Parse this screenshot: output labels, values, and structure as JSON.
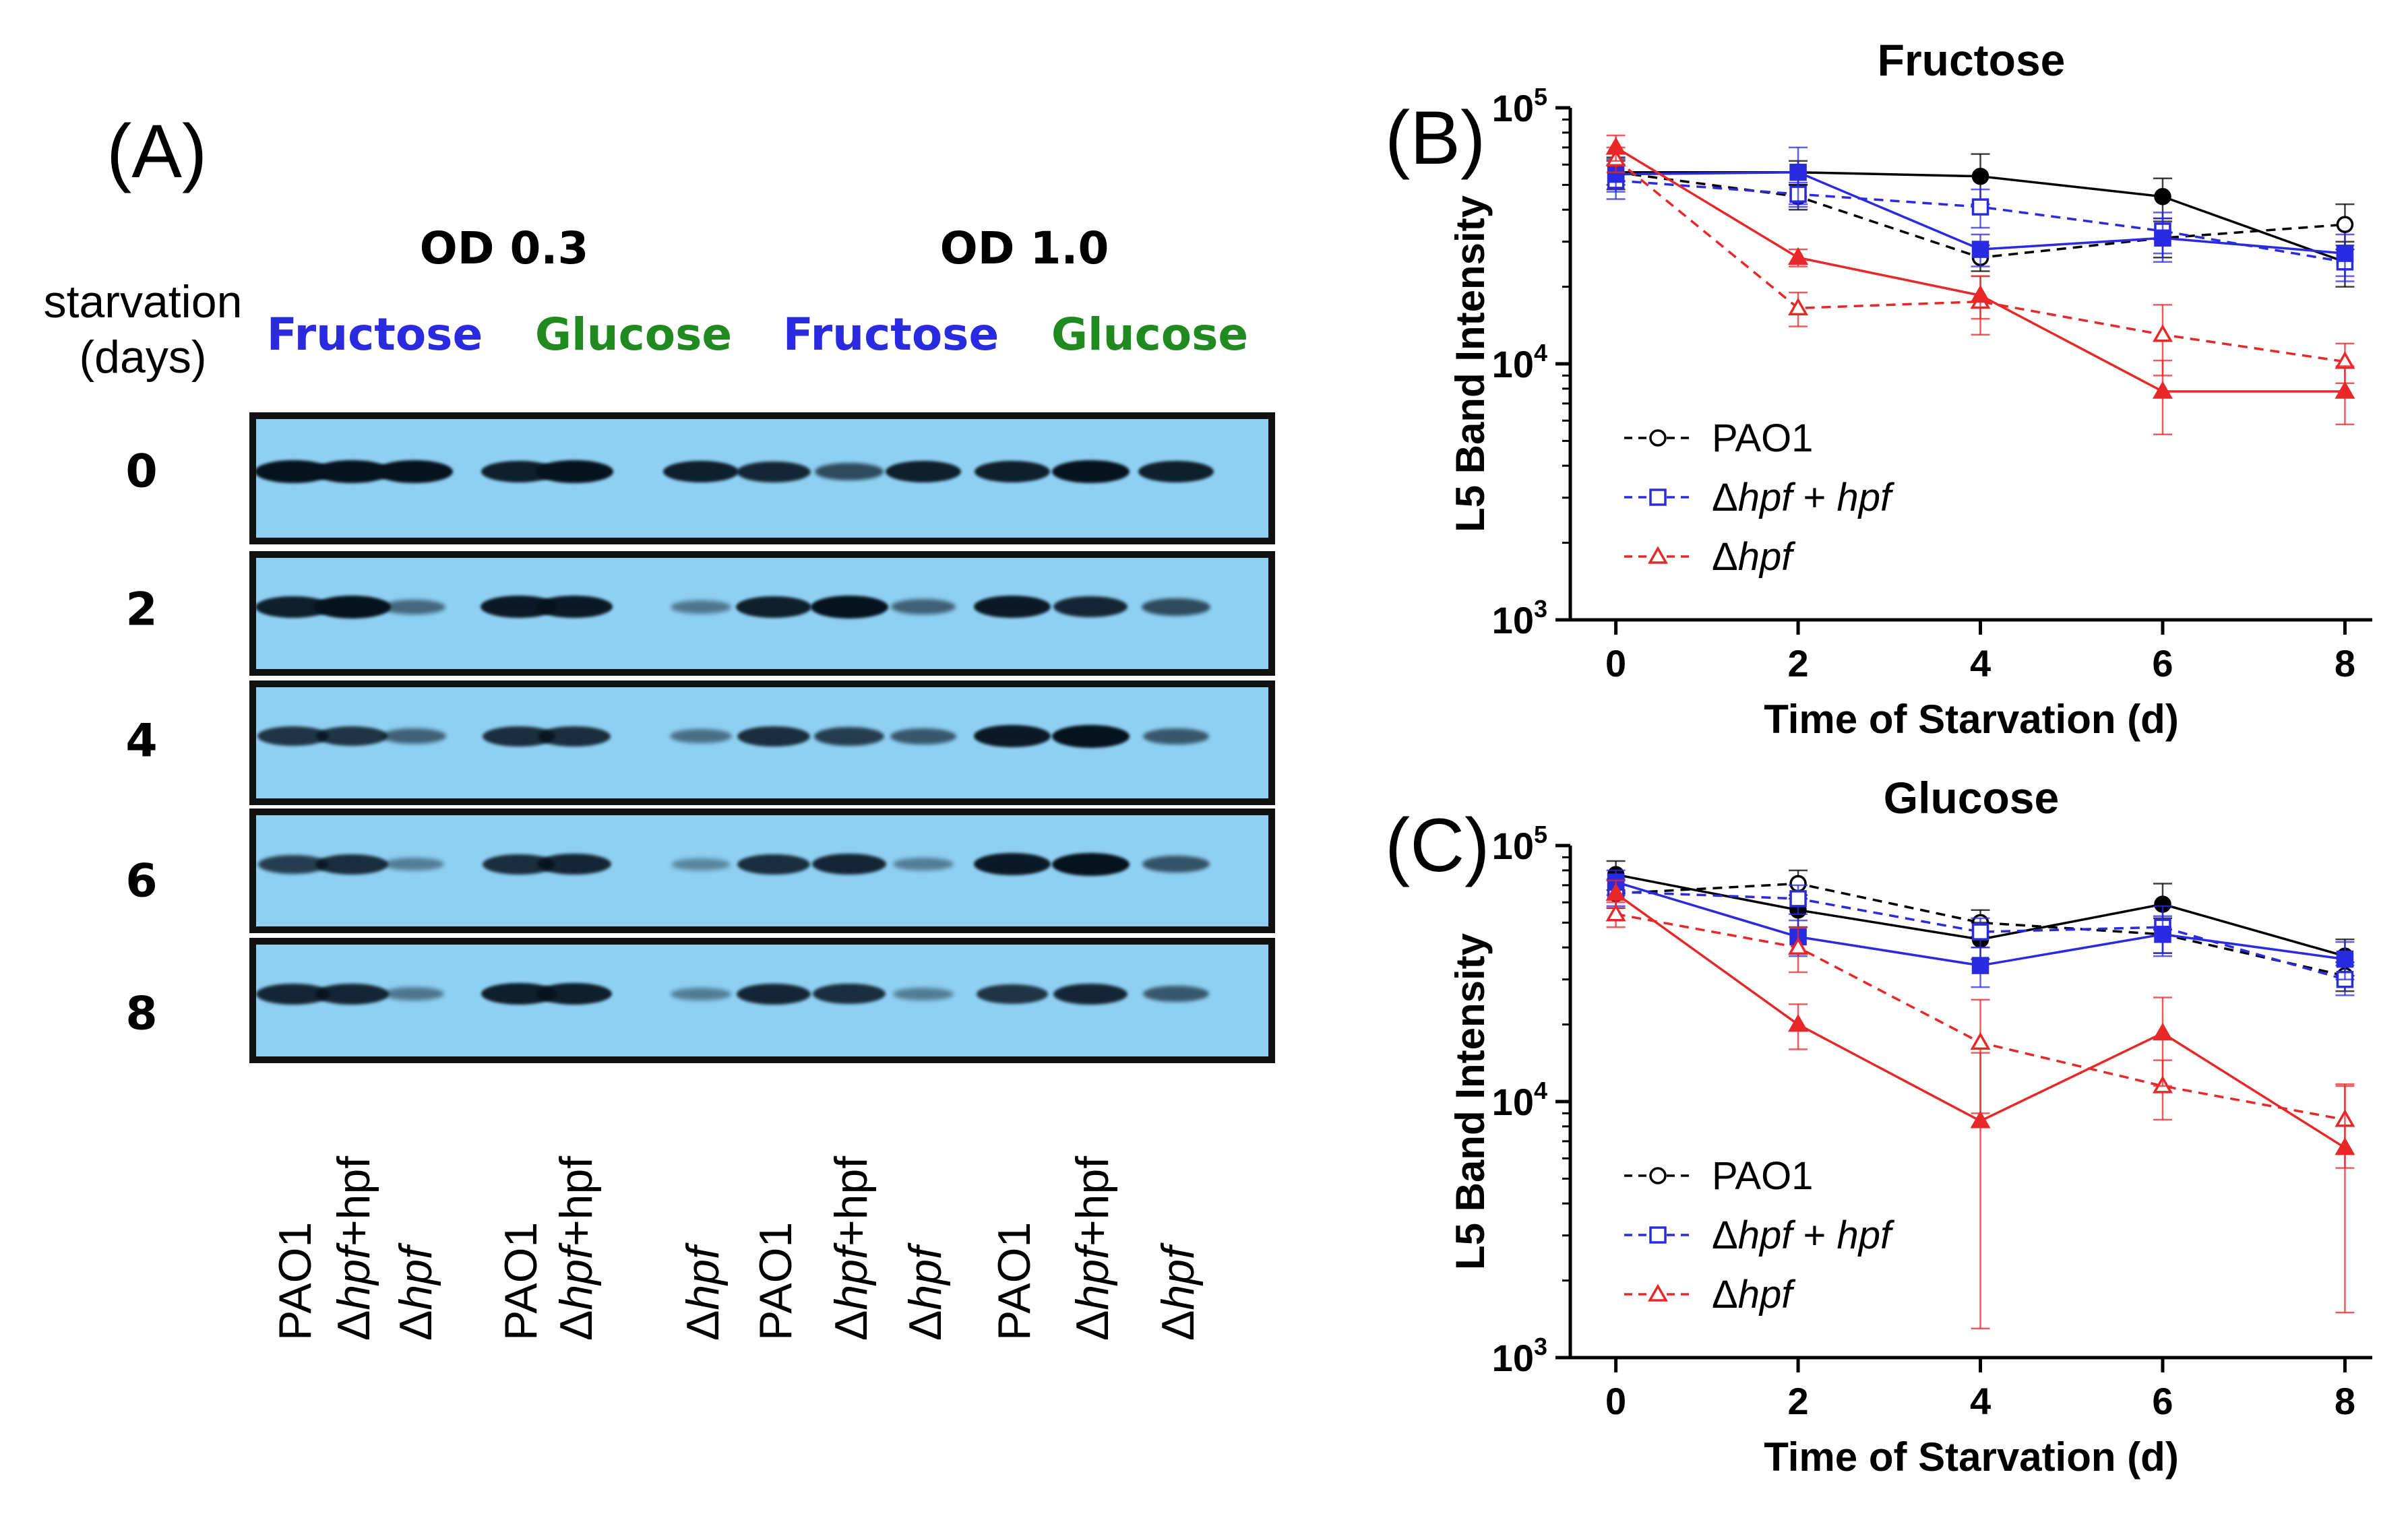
{
  "panels": {
    "a_label": "(A)",
    "b_label": "(B)",
    "c_label": "(C)"
  },
  "blot": {
    "side_label_line1": "starvation",
    "side_label_line2": "(days)",
    "od_groups": [
      "OD 0.3",
      "OD 1.0"
    ],
    "carbon_sources": [
      {
        "label": "Fructose",
        "color": "#2a2ae0"
      },
      {
        "label": "Glucose",
        "color": "#208a20"
      },
      {
        "label": "Fructose",
        "color": "#2a2ae0"
      },
      {
        "label": "Glucose",
        "color": "#208a20"
      }
    ],
    "rows": [
      "0",
      "2",
      "4",
      "6",
      "8"
    ],
    "lanes": [
      {
        "pre": "",
        "it": "",
        "post": "PAO1"
      },
      {
        "pre": "Δ",
        "it": "hpf",
        "post": "+hpf"
      },
      {
        "pre": "Δ",
        "it": "hpf",
        "post": ""
      },
      {
        "pre": "",
        "it": "",
        "post": "PAO1"
      },
      {
        "pre": "Δ",
        "it": "hpf",
        "post": "+hpf"
      },
      {
        "pre": "Δ",
        "it": "hpf",
        "post": ""
      },
      {
        "pre": "",
        "it": "",
        "post": "PAO1"
      },
      {
        "pre": "Δ",
        "it": "hpf",
        "post": "+hpf"
      },
      {
        "pre": "Δ",
        "it": "hpf",
        "post": ""
      },
      {
        "pre": "",
        "it": "",
        "post": "PAO1"
      },
      {
        "pre": "Δ",
        "it": "hpf",
        "post": "+hpf"
      },
      {
        "pre": "Δ",
        "it": "hpf",
        "post": ""
      }
    ],
    "band_intensity": [
      [
        1.0,
        1.0,
        1.0,
        0.9,
        1.0,
        0.9,
        0.85,
        0.6,
        0.9,
        0.9,
        1.0,
        0.9
      ],
      [
        0.9,
        1.0,
        0.4,
        0.95,
        0.95,
        0.3,
        0.9,
        1.0,
        0.45,
        0.95,
        0.85,
        0.6
      ],
      [
        0.75,
        0.75,
        0.45,
        0.8,
        0.8,
        0.35,
        0.8,
        0.7,
        0.5,
        0.95,
        1.0,
        0.5
      ],
      [
        0.7,
        0.8,
        0.25,
        0.8,
        0.85,
        0.2,
        0.8,
        0.85,
        0.25,
        0.95,
        1.0,
        0.55
      ],
      [
        0.85,
        0.85,
        0.3,
        0.9,
        0.9,
        0.25,
        0.85,
        0.8,
        0.25,
        0.75,
        0.85,
        0.5
      ]
    ]
  },
  "chart_data": [
    {
      "type": "line",
      "panel": "(B)",
      "title": "Fructose",
      "xlabel": "Time of Starvation (d)",
      "ylabel": "L5  Band Intensity",
      "yscale": "log",
      "ylim": [
        1000,
        100000
      ],
      "xlim": [
        -0.5,
        8.3
      ],
      "x": [
        0,
        2,
        4,
        6,
        8
      ],
      "xticks": [
        "0",
        "2",
        "4",
        "6",
        "8"
      ],
      "yticks": [
        {
          "base": "10",
          "exp": "3"
        },
        {
          "base": "10",
          "exp": "4"
        },
        {
          "base": "10",
          "exp": "5"
        }
      ],
      "legend": [
        "PAO1",
        "Δhpf + hpf",
        "Δhpf"
      ],
      "legend_position": "bottom-left",
      "series": [
        {
          "name": "PAO1 (OD 0.3)",
          "color": "#000000",
          "marker": "circle",
          "filled": false,
          "dash": true,
          "values": [
            56000,
            45000,
            26000,
            31000,
            35000
          ],
          "err": [
            6000,
            5000,
            3000,
            5000,
            7000
          ]
        },
        {
          "name": "PAO1 (OD 1.0)",
          "color": "#000000",
          "marker": "circle",
          "filled": true,
          "dash": false,
          "values": [
            56000,
            56000,
            54000,
            45000,
            25000
          ],
          "err": [
            8000,
            6000,
            12000,
            8000,
            5000
          ]
        },
        {
          "name": "Δhpf + hpf (OD 0.3)",
          "color": "#2a2ae0",
          "marker": "square",
          "filled": false,
          "dash": true,
          "values": [
            52000,
            46000,
            41000,
            33000,
            25000
          ],
          "err": [
            8000,
            5000,
            7000,
            6000,
            4000
          ]
        },
        {
          "name": "Δhpf + hpf (OD 1.0)",
          "color": "#2a2ae0",
          "marker": "square",
          "filled": true,
          "dash": false,
          "values": [
            55000,
            56000,
            28000,
            31000,
            27000
          ],
          "err": [
            8000,
            14000,
            4000,
            6000,
            5000
          ]
        },
        {
          "name": "Δhpf (OD 0.3)",
          "color": "#e82828",
          "marker": "triangle",
          "filled": false,
          "dash": true,
          "values": [
            63000,
            16500,
            17500,
            13000,
            10200
          ],
          "err": [
            7000,
            2500,
            4500,
            4000,
            1800
          ]
        },
        {
          "name": "Δhpf (OD 1.0)",
          "color": "#e82828",
          "marker": "triangle",
          "filled": true,
          "dash": false,
          "values": [
            70000,
            26000,
            18500,
            7800,
            7800
          ],
          "err": [
            8000,
            2000,
            3500,
            2500,
            2000
          ]
        }
      ]
    },
    {
      "type": "line",
      "panel": "(C)",
      "title": "Glucose",
      "xlabel": "Time of Starvation (d)",
      "ylabel": "L5  Band Intensity",
      "yscale": "log",
      "ylim": [
        1000,
        100000
      ],
      "xlim": [
        -0.5,
        8.3
      ],
      "x": [
        0,
        2,
        4,
        6,
        8
      ],
      "xticks": [
        "0",
        "2",
        "4",
        "6",
        "8"
      ],
      "yticks": [
        {
          "base": "10",
          "exp": "3"
        },
        {
          "base": "10",
          "exp": "4"
        },
        {
          "base": "10",
          "exp": "5"
        }
      ],
      "legend": [
        "PAO1",
        "Δhpf + hpf",
        "Δhpf"
      ],
      "legend_position": "bottom-left",
      "series": [
        {
          "name": "PAO1 (OD 0.3)",
          "color": "#000000",
          "marker": "circle",
          "filled": false,
          "dash": true,
          "values": [
            65000,
            71000,
            50000,
            45000,
            31000
          ],
          "err": [
            8000,
            9000,
            6000,
            7000,
            4000
          ]
        },
        {
          "name": "PAO1 (OD 1.0)",
          "color": "#000000",
          "marker": "circle",
          "filled": true,
          "dash": false,
          "values": [
            77000,
            56000,
            43000,
            59000,
            37000
          ],
          "err": [
            10000,
            8000,
            7000,
            12000,
            6000
          ]
        },
        {
          "name": "Δhpf + hpf (OD 0.3)",
          "color": "#2a2ae0",
          "marker": "square",
          "filled": false,
          "dash": true,
          "values": [
            66000,
            62000,
            46000,
            48000,
            30000
          ],
          "err": [
            8000,
            8000,
            6000,
            10000,
            4000
          ]
        },
        {
          "name": "Δhpf + hpf (OD 1.0)",
          "color": "#2a2ae0",
          "marker": "square",
          "filled": true,
          "dash": false,
          "values": [
            72000,
            44000,
            34000,
            45000,
            36000
          ],
          "err": [
            8000,
            7000,
            6000,
            8000,
            6000
          ]
        },
        {
          "name": "Δhpf (OD 0.3)",
          "color": "#e82828",
          "marker": "triangle",
          "filled": false,
          "dash": true,
          "values": [
            54000,
            40000,
            17000,
            11500,
            8500
          ],
          "err": [
            6000,
            8000,
            8000,
            3000,
            3000
          ]
        },
        {
          "name": "Δhpf (OD 1.0)",
          "color": "#e82828",
          "marker": "triangle",
          "filled": true,
          "dash": false,
          "values": [
            65000,
            20000,
            8400,
            18500,
            6600
          ],
          "err": [
            8000,
            4000,
            7100,
            7000,
            5100
          ]
        }
      ]
    }
  ]
}
